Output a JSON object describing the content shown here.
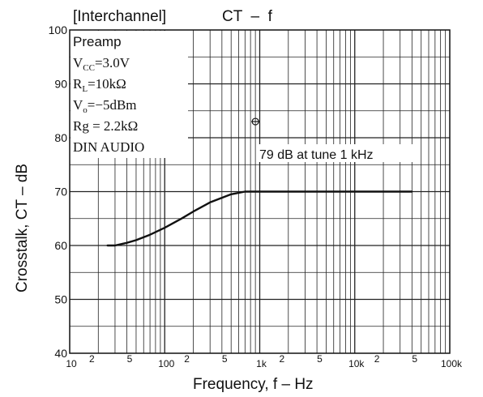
{
  "chart_data": {
    "type": "line",
    "title_left": "[Interchannel]",
    "title_right": "CT  –  f",
    "xlabel": "Frequency, f – Hz",
    "ylabel": "Crosstalk, CT – dB",
    "x_scale": "log",
    "xlim": [
      10,
      100000
    ],
    "ylim": [
      40,
      100
    ],
    "grid": true,
    "y_ticks": [
      "100",
      "90",
      "80",
      "70",
      "60",
      "50",
      "40"
    ],
    "x_ticks": [
      {
        "value": 10,
        "label": "10"
      },
      {
        "value": 20,
        "label": "2"
      },
      {
        "value": 50,
        "label": "5"
      },
      {
        "value": 100,
        "label": "100"
      },
      {
        "value": 200,
        "label": "2"
      },
      {
        "value": 500,
        "label": "5"
      },
      {
        "value": 1000,
        "label": "1k"
      },
      {
        "value": 2000,
        "label": "2"
      },
      {
        "value": 5000,
        "label": "5"
      },
      {
        "value": 10000,
        "label": "10k"
      },
      {
        "value": 20000,
        "label": "2"
      },
      {
        "value": 50000,
        "label": "5"
      },
      {
        "value": 100000,
        "label": "100k"
      }
    ],
    "conditions": [
      "Preamp",
      "V_CC = 3.0V",
      "R_L = 10kΩ",
      "V_o = −5dBm",
      "Rg = 2.2kΩ",
      "DIN AUDIO"
    ],
    "annotation": "79 dB at tune 1 kHz",
    "annotation_marker": {
      "x": 900,
      "y": 83
    },
    "series": [
      {
        "x": [
          25,
          30,
          40,
          50,
          70,
          100,
          150,
          200,
          300,
          500,
          700,
          1000,
          2000,
          5000,
          10000,
          20000,
          40000
        ],
        "y": [
          60,
          60,
          60.5,
          61,
          62,
          63.3,
          65,
          66.3,
          68,
          69.5,
          70,
          70,
          70,
          70,
          70,
          70,
          70
        ]
      }
    ]
  }
}
